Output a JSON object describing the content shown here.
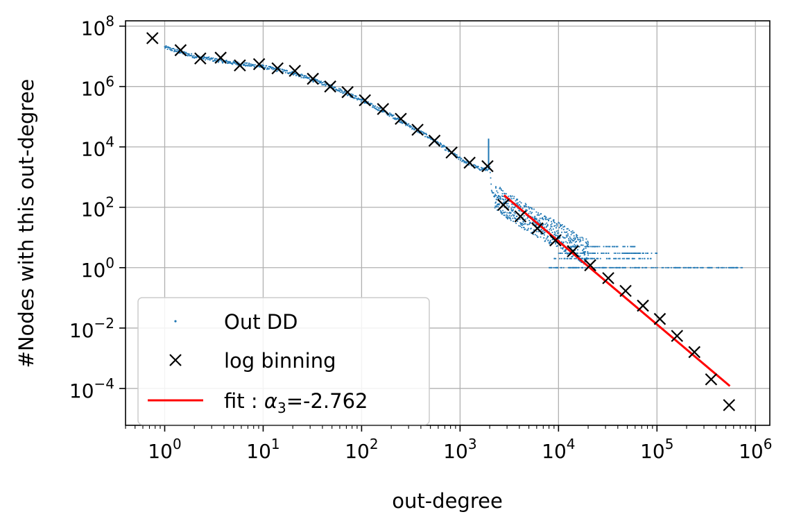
{
  "chart_data": {
    "type": "scatter",
    "title": "",
    "xlabel": "out-degree",
    "ylabel": "#Nodes with this out-degree",
    "xscale": "log",
    "yscale": "log",
    "xlim": [
      0.4,
      1400000
    ],
    "ylim": [
      6e-06,
      150000000
    ],
    "grid": true,
    "legend_position": "lower-left",
    "x_ticks": [
      {
        "value": 1,
        "base": "10",
        "exp": "0"
      },
      {
        "value": 10,
        "base": "10",
        "exp": "1"
      },
      {
        "value": 100,
        "base": "10",
        "exp": "2"
      },
      {
        "value": 1000,
        "base": "10",
        "exp": "3"
      },
      {
        "value": 10000,
        "base": "10",
        "exp": "4"
      },
      {
        "value": 100000,
        "base": "10",
        "exp": "5"
      },
      {
        "value": 1000000,
        "base": "10",
        "exp": "6"
      }
    ],
    "y_ticks": [
      {
        "value": 0.0001,
        "base": "10",
        "exp": "−4"
      },
      {
        "value": 0.01,
        "base": "10",
        "exp": "−2"
      },
      {
        "value": 1,
        "base": "10",
        "exp": "0"
      },
      {
        "value": 100,
        "base": "10",
        "exp": "2"
      },
      {
        "value": 10000,
        "base": "10",
        "exp": "4"
      },
      {
        "value": 1000000,
        "base": "10",
        "exp": "6"
      },
      {
        "value": 100000000,
        "base": "10",
        "exp": "8"
      }
    ],
    "series": [
      {
        "name": "Out DD",
        "kind": "dots",
        "color": "#1f77b4",
        "curve": [
          [
            1,
            20000000
          ],
          [
            2,
            10000000
          ],
          [
            5,
            6000000
          ],
          [
            10,
            4500000
          ],
          [
            20,
            2800000
          ],
          [
            50,
            1000000
          ],
          [
            100,
            350000
          ],
          [
            200,
            110000
          ],
          [
            500,
            20000
          ],
          [
            1000,
            4000
          ],
          [
            1500,
            2000
          ],
          [
            1800,
            1800
          ],
          [
            2000,
            2000
          ],
          [
            2100,
            300
          ],
          [
            3000,
            120
          ],
          [
            5000,
            40
          ],
          [
            10000,
            12
          ],
          [
            20000,
            3
          ]
        ],
        "spike": {
          "x": 1950,
          "y_from": 1800,
          "y_to": 18000
        },
        "bands": [
          {
            "y": 5,
            "x_from": 12000,
            "x_to": 60000
          },
          {
            "y": 3,
            "x_from": 10000,
            "x_to": 100000
          },
          {
            "y": 2,
            "x_from": 9000,
            "x_to": 90000
          },
          {
            "y": 1,
            "x_from": 8000,
            "x_to": 750000
          }
        ]
      },
      {
        "name": "log binning",
        "kind": "x-markers",
        "color": "#000000",
        "points": [
          [
            0.75,
            40000000
          ],
          [
            1.45,
            16000000
          ],
          [
            2.3,
            8500000
          ],
          [
            3.7,
            9000000
          ],
          [
            5.8,
            5000000
          ],
          [
            9.1,
            5500000
          ],
          [
            14,
            4000000
          ],
          [
            21,
            3300000
          ],
          [
            32,
            1800000
          ],
          [
            48,
            1000000
          ],
          [
            72,
            650000
          ],
          [
            108,
            350000
          ],
          [
            165,
            180000
          ],
          [
            250,
            85000
          ],
          [
            370,
            37000
          ],
          [
            550,
            16000
          ],
          [
            820,
            6500
          ],
          [
            1250,
            3000
          ],
          [
            1900,
            2300
          ],
          [
            2750,
            120
          ],
          [
            4100,
            50
          ],
          [
            6100,
            20
          ],
          [
            9300,
            8
          ],
          [
            14000,
            3.5
          ],
          [
            21000,
            1.2
          ],
          [
            32000,
            0.45
          ],
          [
            48000,
            0.17
          ],
          [
            72000,
            0.055
          ],
          [
            107000,
            0.02
          ],
          [
            160000,
            0.0055
          ],
          [
            240000,
            0.0016
          ],
          [
            355000,
            0.0002
          ],
          [
            540000,
            2.8e-05
          ]
        ]
      },
      {
        "name": "fit",
        "kind": "line",
        "color": "#ff0000",
        "alpha": -2.762,
        "x": [
          2800,
          550000
        ],
        "y": [
          250,
          0.00012
        ]
      }
    ],
    "legend": [
      {
        "label": "Out DD",
        "kind": "dots"
      },
      {
        "label": "log binning",
        "kind": "x-markers"
      },
      {
        "label_prefix": "fit : ",
        "symbol": "α",
        "subscript": "3",
        "label_suffix": "=-2.762",
        "kind": "line"
      }
    ]
  }
}
